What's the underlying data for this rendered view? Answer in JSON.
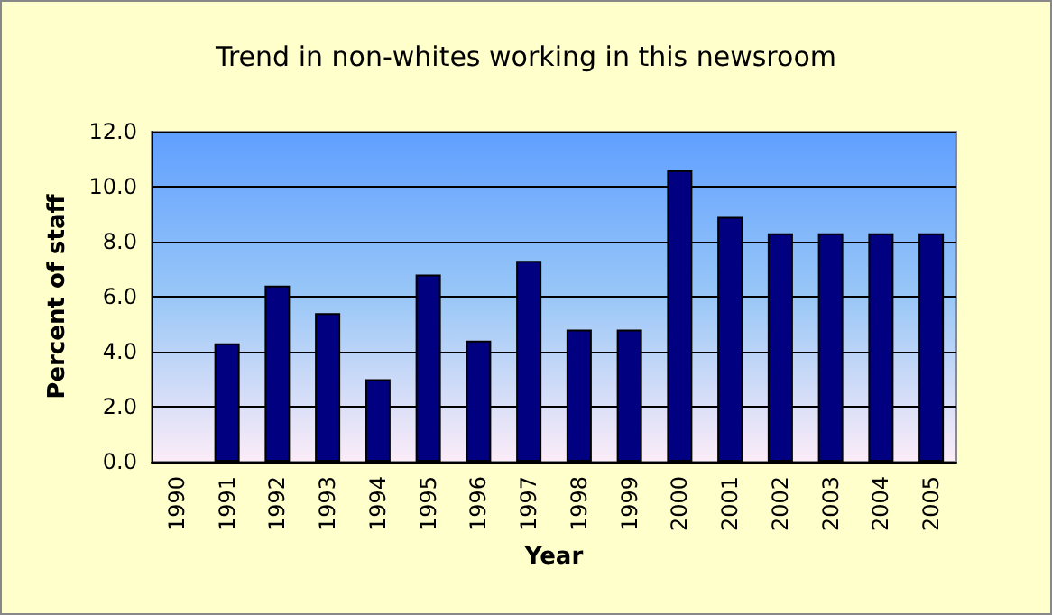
{
  "chart_data": {
    "type": "bar",
    "title": "Trend in non-whites working in this newsroom",
    "xlabel": "Year",
    "ylabel": "Percent of staff",
    "categories": [
      "1990",
      "1991",
      "1992",
      "1993",
      "1994",
      "1995",
      "1996",
      "1997",
      "1998",
      "1999",
      "2000",
      "2001",
      "2002",
      "2003",
      "2004",
      "2005"
    ],
    "values": [
      null,
      4.3,
      6.4,
      5.4,
      3.0,
      6.8,
      4.4,
      7.3,
      4.8,
      4.8,
      10.6,
      8.9,
      8.3,
      8.3,
      8.3,
      8.3
    ],
    "color": "#000080",
    "ylim": [
      0,
      12
    ],
    "yticks": [
      {
        "value": 0,
        "label": "0.0"
      },
      {
        "value": 2,
        "label": "2.0"
      },
      {
        "value": 4,
        "label": "4.0"
      },
      {
        "value": 6,
        "label": "6.0"
      },
      {
        "value": 8,
        "label": "8.0"
      },
      {
        "value": 10,
        "label": "10.0"
      },
      {
        "value": 12,
        "label": "12.0"
      }
    ],
    "grid": "y"
  }
}
